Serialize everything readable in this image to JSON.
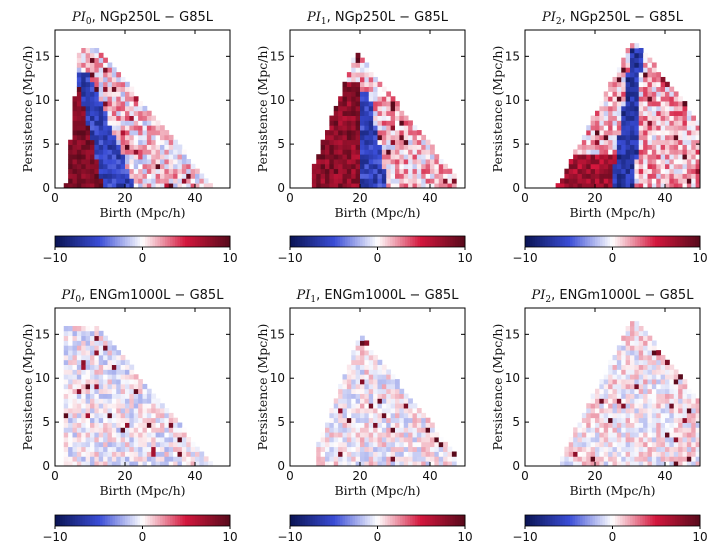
{
  "chart_data": [
    {
      "type": "heatmap",
      "row": 0,
      "pattern": "ng_h0",
      "title": {
        "symbol": "PI",
        "subscript": "0",
        "suffix": ", NGp250L − G85L"
      },
      "xlabel": "Birth (Mpc/h)",
      "ylabel": "Persistence (Mpc/h)",
      "xlim": [
        0,
        50
      ],
      "ylim": [
        0,
        18
      ],
      "xticks": [
        "0",
        "20",
        "40"
      ],
      "yticks": [
        "0",
        "5",
        "10",
        "15"
      ],
      "colorbar": {
        "min": -10,
        "max": 10,
        "ticks": [
          "−10",
          "0",
          "10"
        ]
      }
    },
    {
      "type": "heatmap",
      "row": 0,
      "pattern": "ng_h1",
      "title": {
        "symbol": "PI",
        "subscript": "1",
        "suffix": ", NGp250L − G85L"
      },
      "xlabel": "Birth (Mpc/h)",
      "ylabel": "Persistence (Mpc/h)",
      "xlim": [
        0,
        50
      ],
      "ylim": [
        0,
        18
      ],
      "xticks": [
        "0",
        "20",
        "40"
      ],
      "yticks": [
        "0",
        "5",
        "10",
        "15"
      ],
      "colorbar": {
        "min": -10,
        "max": 10,
        "ticks": [
          "−10",
          "0",
          "10"
        ]
      }
    },
    {
      "type": "heatmap",
      "row": 0,
      "pattern": "ng_h2",
      "title": {
        "symbol": "PI",
        "subscript": "2",
        "suffix": ", NGp250L − G85L"
      },
      "xlabel": "Birth (Mpc/h)",
      "ylabel": "Persistence (Mpc/h)",
      "xlim": [
        0,
        50
      ],
      "ylim": [
        0,
        18
      ],
      "xticks": [
        "0",
        "20",
        "40"
      ],
      "yticks": [
        "0",
        "5",
        "10",
        "15"
      ],
      "colorbar": {
        "min": -10,
        "max": 10,
        "ticks": [
          "−10",
          "0",
          "10"
        ]
      }
    },
    {
      "type": "heatmap",
      "row": 1,
      "pattern": "eng_h0",
      "title": {
        "symbol": "PI",
        "subscript": "0",
        "suffix": ", ENGm1000L − G85L"
      },
      "xlabel": "Birth (Mpc/h)",
      "ylabel": "Persistence (Mpc/h)",
      "xlim": [
        0,
        50
      ],
      "ylim": [
        0,
        18
      ],
      "xticks": [
        "0",
        "20",
        "40"
      ],
      "yticks": [
        "0",
        "5",
        "10",
        "15"
      ],
      "colorbar": {
        "min": -10,
        "max": 10,
        "ticks": [
          "−10",
          "0",
          "10"
        ]
      }
    },
    {
      "type": "heatmap",
      "row": 1,
      "pattern": "eng_h1",
      "title": {
        "symbol": "PI",
        "subscript": "1",
        "suffix": ", ENGm1000L − G85L"
      },
      "xlabel": "Birth (Mpc/h)",
      "ylabel": "Persistence (Mpc/h)",
      "xlim": [
        0,
        50
      ],
      "ylim": [
        0,
        18
      ],
      "xticks": [
        "0",
        "20",
        "40"
      ],
      "yticks": [
        "0",
        "5",
        "10",
        "15"
      ],
      "colorbar": {
        "min": -10,
        "max": 10,
        "ticks": [
          "−10",
          "0",
          "10"
        ]
      }
    },
    {
      "type": "heatmap",
      "row": 1,
      "pattern": "eng_h2",
      "title": {
        "symbol": "PI",
        "subscript": "2",
        "suffix": ", ENGm1000L − G85L"
      },
      "xlabel": "Birth (Mpc/h)",
      "ylabel": "Persistence (Mpc/h)",
      "xlim": [
        0,
        50
      ],
      "ylim": [
        0,
        18
      ],
      "xticks": [
        "0",
        "20",
        "40"
      ],
      "yticks": [
        "0",
        "5",
        "10",
        "15"
      ],
      "colorbar": {
        "min": -10,
        "max": 10,
        "ticks": [
          "−10",
          "0",
          "10"
        ]
      }
    }
  ],
  "colormap": {
    "name": "diverging",
    "stops": [
      "#0b1556",
      "#3a4dd6",
      "#ffffff",
      "#d4173d",
      "#5a0a1c"
    ]
  }
}
